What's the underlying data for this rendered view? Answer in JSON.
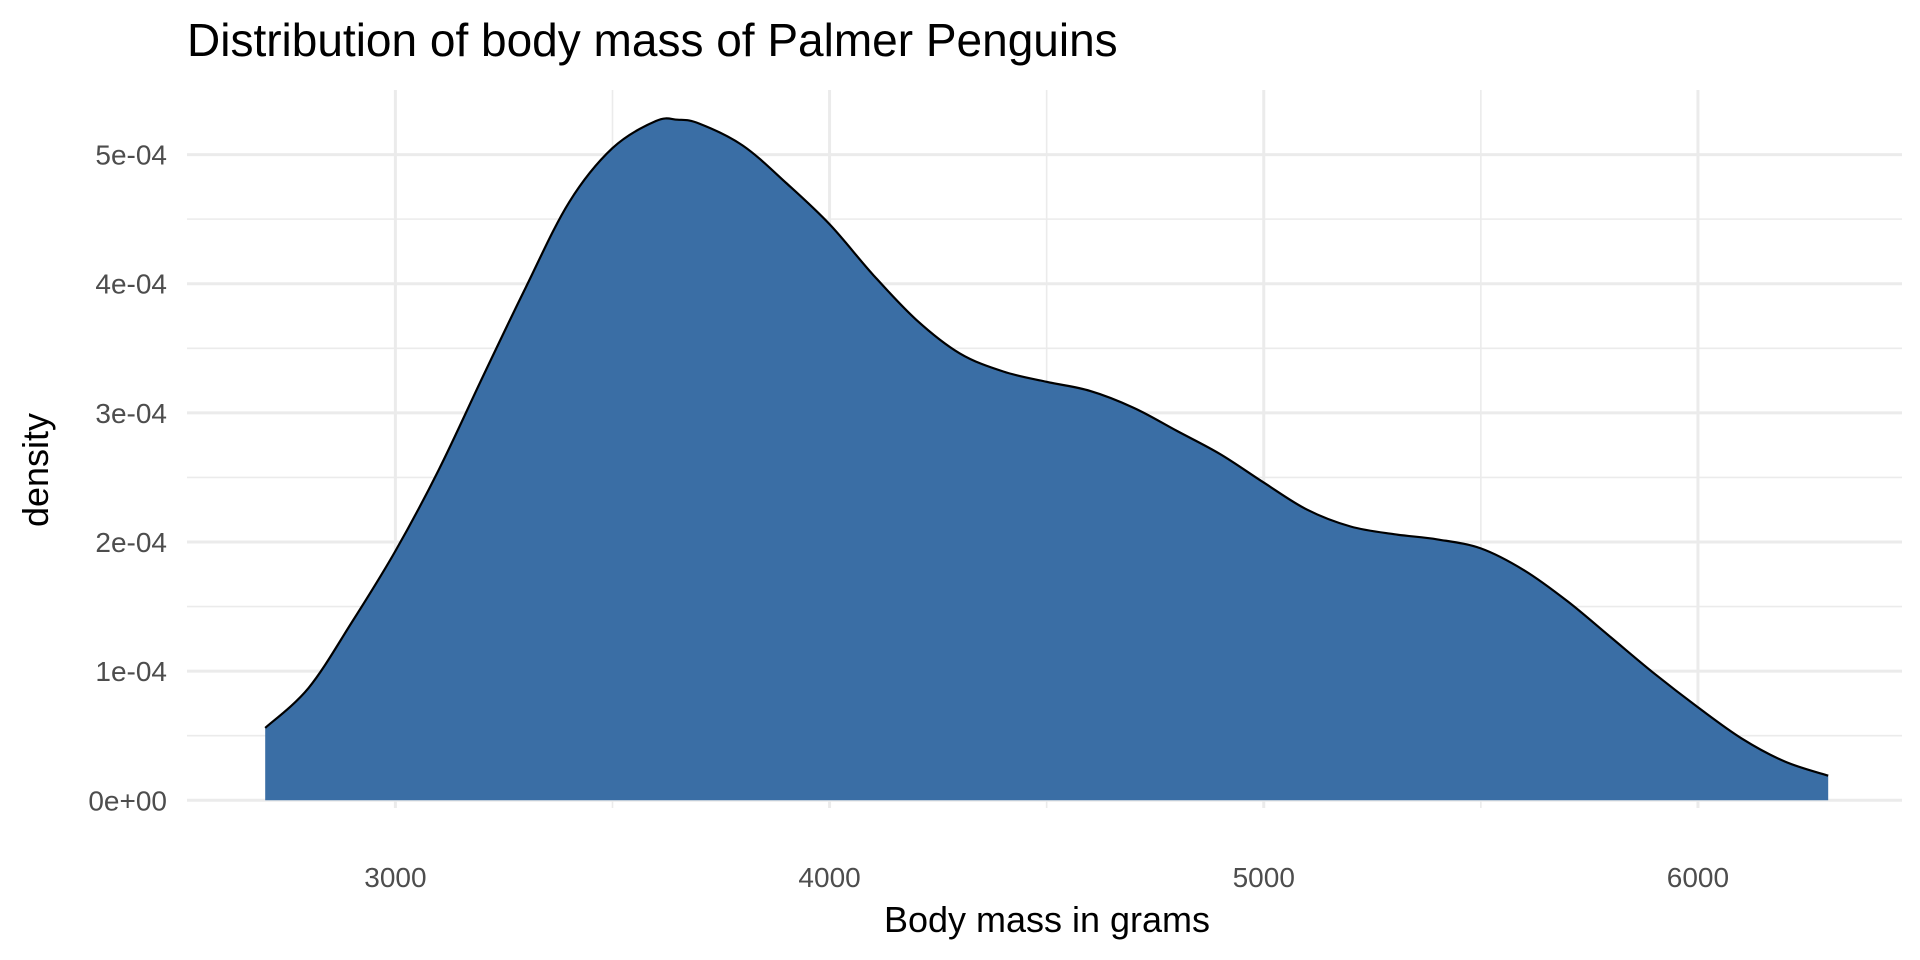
{
  "chart_data": {
    "type": "area",
    "title": "Distribution of body mass of Palmer Penguins",
    "xlabel": "Body mass in grams",
    "ylabel": "density",
    "xlim": [
      2520,
      6470
    ],
    "ylim": [
      -6e-06,
      0.00055
    ],
    "x_ticks": [
      3000,
      4000,
      5000,
      6000
    ],
    "x_tick_labels": [
      "3000",
      "4000",
      "5000",
      "6000"
    ],
    "x_minor_ticks": [
      3500,
      4500,
      5500
    ],
    "y_ticks": [
      0,
      0.0001,
      0.0002,
      0.0003,
      0.0004,
      0.0005
    ],
    "y_tick_labels": [
      "0e+00",
      "1e-04",
      "2e-04",
      "3e-04",
      "4e-04",
      "5e-04"
    ],
    "y_minor_ticks": [
      5e-05,
      0.00015,
      0.00025,
      0.00035,
      0.00045
    ],
    "grid": true,
    "fill_color": "#3A6EA5",
    "line_color": "#000000",
    "series": [
      {
        "x": [
          2700,
          2800,
          2900,
          3000,
          3100,
          3200,
          3300,
          3400,
          3500,
          3600,
          3650,
          3700,
          3800,
          3900,
          4000,
          4100,
          4200,
          4300,
          4400,
          4500,
          4600,
          4700,
          4800,
          4900,
          5000,
          5100,
          5200,
          5300,
          5400,
          5500,
          5600,
          5700,
          5800,
          5900,
          6000,
          6100,
          6200,
          6300
        ],
        "y": [
          5.6e-05,
          8.7e-05,
          0.000138,
          0.000193,
          0.000256,
          0.000327,
          0.000397,
          0.000463,
          0.000505,
          0.000526,
          0.000527,
          0.000524,
          0.000507,
          0.000478,
          0.000446,
          0.000407,
          0.000372,
          0.000346,
          0.000332,
          0.000324,
          0.000317,
          0.000304,
          0.000286,
          0.000268,
          0.000246,
          0.000225,
          0.000212,
          0.000206,
          0.000202,
          0.000195,
          0.000178,
          0.000154,
          0.000126,
          9.8e-05,
          7.2e-05,
          4.8e-05,
          3e-05,
          1.9e-05
        ]
      }
    ]
  }
}
